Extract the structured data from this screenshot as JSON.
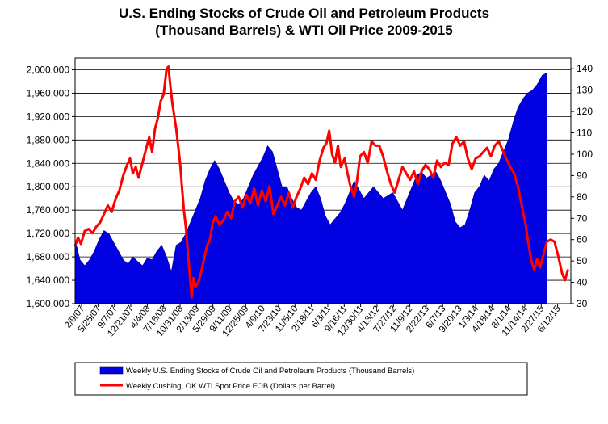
{
  "chart_data": {
    "type": "area+line",
    "title_line1": "U.S. Ending Stocks of Crude Oil and Petroleum Products",
    "title_line2": "(Thousand Barrels) & WTI Oil Price 2009-2015",
    "y_left": {
      "min": 1600000,
      "max": 2020000,
      "ticks": [
        "1,600,000",
        "1,640,000",
        "1,680,000",
        "1,720,000",
        "1,760,000",
        "1,800,000",
        "1,840,000",
        "1,880,000",
        "1,920,000",
        "1,960,000",
        "2,000,000"
      ],
      "tick_values": [
        1600000,
        1640000,
        1680000,
        1720000,
        1760000,
        1800000,
        1840000,
        1880000,
        1920000,
        1960000,
        2000000
      ]
    },
    "y_right": {
      "min": 30,
      "max": 145,
      "ticks": [
        "30",
        "40",
        "50",
        "60",
        "70",
        "80",
        "90",
        "100",
        "110",
        "120",
        "130",
        "140"
      ],
      "tick_values": [
        30,
        40,
        50,
        60,
        70,
        80,
        90,
        100,
        110,
        120,
        130,
        140
      ]
    },
    "x_tick_labels": [
      "2/9/07",
      "5/25/07",
      "9/7/07",
      "12/21/07",
      "4/4/08",
      "7/18/08",
      "10/31/08",
      "2/13/09",
      "5/29/09",
      "9/11/09",
      "12/25/09",
      "4/9/10",
      "7/23/10",
      "11/5/10",
      "2/18/11",
      "6/3/11",
      "9/16/11",
      "12/30/11",
      "4/13/12",
      "7/27/12",
      "11/9/12",
      "2/22/13",
      "6/7/13",
      "9/20/13",
      "1/3/14",
      "4/18/14",
      "8/1/14",
      "11/14/14",
      "2/27/15",
      "6/12/15"
    ],
    "grid": "horizontal",
    "legend_position": "bottom",
    "colors": {
      "stocks": "#0000e0",
      "price": "#ff0000"
    },
    "series": [
      {
        "name": "Weekly U.S. Ending Stocks of Crude Oil and Petroleum Products  (Thousand Barrels)",
        "axis": "left",
        "style": "area",
        "points": [
          [
            0,
            1710000
          ],
          [
            0.5,
            1675000
          ],
          [
            1,
            1665000
          ],
          [
            1.5,
            1675000
          ],
          [
            2,
            1690000
          ],
          [
            2.5,
            1710000
          ],
          [
            3,
            1725000
          ],
          [
            3.5,
            1720000
          ],
          [
            4,
            1705000
          ],
          [
            4.5,
            1690000
          ],
          [
            5,
            1675000
          ],
          [
            5.5,
            1668000
          ],
          [
            6,
            1680000
          ],
          [
            6.5,
            1672000
          ],
          [
            7,
            1665000
          ],
          [
            7.5,
            1678000
          ],
          [
            8,
            1675000
          ],
          [
            8.5,
            1690000
          ],
          [
            9,
            1700000
          ],
          [
            9.5,
            1680000
          ],
          [
            10,
            1655000
          ],
          [
            10.5,
            1700000
          ],
          [
            11,
            1705000
          ],
          [
            11.5,
            1720000
          ],
          [
            12,
            1740000
          ],
          [
            12.5,
            1760000
          ],
          [
            13,
            1780000
          ],
          [
            13.5,
            1810000
          ],
          [
            14,
            1830000
          ],
          [
            14.5,
            1845000
          ],
          [
            15,
            1830000
          ],
          [
            15.5,
            1810000
          ],
          [
            16,
            1790000
          ],
          [
            16.5,
            1775000
          ],
          [
            17,
            1770000
          ],
          [
            17.5,
            1780000
          ],
          [
            18,
            1800000
          ],
          [
            18.5,
            1820000
          ],
          [
            19,
            1835000
          ],
          [
            19.5,
            1850000
          ],
          [
            20,
            1870000
          ],
          [
            20.5,
            1860000
          ],
          [
            21,
            1830000
          ],
          [
            21.5,
            1800000
          ],
          [
            22,
            1800000
          ],
          [
            22.5,
            1780000
          ],
          [
            23,
            1765000
          ],
          [
            23.5,
            1760000
          ],
          [
            24,
            1775000
          ],
          [
            24.5,
            1790000
          ],
          [
            25,
            1800000
          ],
          [
            25.5,
            1780000
          ],
          [
            26,
            1750000
          ],
          [
            26.5,
            1735000
          ],
          [
            27,
            1745000
          ],
          [
            27.5,
            1755000
          ],
          [
            28,
            1770000
          ],
          [
            28.5,
            1790000
          ],
          [
            29,
            1810000
          ],
          [
            29.5,
            1795000
          ],
          [
            30,
            1780000
          ],
          [
            30.5,
            1790000
          ],
          [
            31,
            1800000
          ],
          [
            31.5,
            1790000
          ],
          [
            32,
            1780000
          ],
          [
            32.5,
            1785000
          ],
          [
            33,
            1790000
          ],
          [
            33.5,
            1775000
          ],
          [
            34,
            1760000
          ],
          [
            34.5,
            1780000
          ],
          [
            35,
            1800000
          ],
          [
            35.5,
            1820000
          ],
          [
            36,
            1825000
          ],
          [
            36.5,
            1815000
          ],
          [
            37,
            1820000
          ],
          [
            37.5,
            1825000
          ],
          [
            38,
            1810000
          ],
          [
            38.5,
            1790000
          ],
          [
            39,
            1770000
          ],
          [
            39.5,
            1740000
          ],
          [
            40,
            1730000
          ],
          [
            40.5,
            1735000
          ],
          [
            41,
            1760000
          ],
          [
            41.5,
            1790000
          ],
          [
            42,
            1800000
          ],
          [
            42.5,
            1820000
          ],
          [
            43,
            1810000
          ],
          [
            43.5,
            1830000
          ],
          [
            44,
            1840000
          ],
          [
            44.5,
            1860000
          ],
          [
            45,
            1880000
          ],
          [
            45.5,
            1910000
          ],
          [
            46,
            1935000
          ],
          [
            46.5,
            1950000
          ],
          [
            47,
            1960000
          ],
          [
            47.5,
            1965000
          ],
          [
            48,
            1975000
          ],
          [
            48.5,
            1990000
          ],
          [
            49,
            1995000
          ]
        ]
      },
      {
        "name": "Weekly Cushing, OK WTI Spot Price FOB  (Dollars per Barrel)",
        "axis": "right",
        "style": "line",
        "points": [
          [
            0,
            57
          ],
          [
            0.3,
            61
          ],
          [
            0.6,
            58
          ],
          [
            1,
            64
          ],
          [
            1.4,
            65
          ],
          [
            1.8,
            63
          ],
          [
            2.2,
            66
          ],
          [
            2.6,
            68
          ],
          [
            3,
            72
          ],
          [
            3.4,
            76
          ],
          [
            3.8,
            73
          ],
          [
            4.2,
            79
          ],
          [
            4.6,
            83
          ],
          [
            5,
            90
          ],
          [
            5.4,
            95
          ],
          [
            5.7,
            98
          ],
          [
            6,
            91
          ],
          [
            6.3,
            94
          ],
          [
            6.6,
            89
          ],
          [
            7,
            96
          ],
          [
            7.4,
            103
          ],
          [
            7.7,
            108
          ],
          [
            8,
            101
          ],
          [
            8.3,
            112
          ],
          [
            8.6,
            117
          ],
          [
            8.9,
            125
          ],
          [
            9.2,
            128
          ],
          [
            9.5,
            140
          ],
          [
            9.7,
            141
          ],
          [
            9.9,
            132
          ],
          [
            10.1,
            124
          ],
          [
            10.3,
            118
          ],
          [
            10.5,
            112
          ],
          [
            10.7,
            104
          ],
          [
            10.9,
            96
          ],
          [
            11.1,
            85
          ],
          [
            11.3,
            74
          ],
          [
            11.5,
            66
          ],
          [
            11.7,
            55
          ],
          [
            11.9,
            44
          ],
          [
            12.1,
            33
          ],
          [
            12.3,
            42
          ],
          [
            12.5,
            38
          ],
          [
            12.8,
            40
          ],
          [
            13.1,
            45
          ],
          [
            13.4,
            51
          ],
          [
            13.7,
            57
          ],
          [
            14,
            60
          ],
          [
            14.3,
            68
          ],
          [
            14.6,
            71
          ],
          [
            15,
            67
          ],
          [
            15.4,
            69
          ],
          [
            15.8,
            73
          ],
          [
            16.2,
            70
          ],
          [
            16.6,
            78
          ],
          [
            17,
            80
          ],
          [
            17.4,
            75
          ],
          [
            17.8,
            81
          ],
          [
            18.2,
            77
          ],
          [
            18.6,
            84
          ],
          [
            19,
            76
          ],
          [
            19.4,
            83
          ],
          [
            19.8,
            78
          ],
          [
            20.2,
            85
          ],
          [
            20.6,
            72
          ],
          [
            21,
            76
          ],
          [
            21.4,
            80
          ],
          [
            21.8,
            76
          ],
          [
            22.2,
            82
          ],
          [
            22.6,
            75
          ],
          [
            23,
            80
          ],
          [
            23.4,
            84
          ],
          [
            23.8,
            89
          ],
          [
            24.2,
            86
          ],
          [
            24.6,
            91
          ],
          [
            25,
            88
          ],
          [
            25.4,
            97
          ],
          [
            25.8,
            103
          ],
          [
            26.1,
            105
          ],
          [
            26.4,
            111
          ],
          [
            26.7,
            100
          ],
          [
            27,
            96
          ],
          [
            27.3,
            104
          ],
          [
            27.6,
            94
          ],
          [
            28,
            98
          ],
          [
            28.3,
            91
          ],
          [
            28.6,
            85
          ],
          [
            29,
            80
          ],
          [
            29.3,
            88
          ],
          [
            29.6,
            99
          ],
          [
            30,
            101
          ],
          [
            30.4,
            96
          ],
          [
            30.8,
            106
          ],
          [
            31.2,
            104
          ],
          [
            31.6,
            104
          ],
          [
            32,
            99
          ],
          [
            32.4,
            92
          ],
          [
            32.8,
            86
          ],
          [
            33.2,
            82
          ],
          [
            33.6,
            88
          ],
          [
            34,
            94
          ],
          [
            34.4,
            91
          ],
          [
            34.8,
            88
          ],
          [
            35.2,
            92
          ],
          [
            35.6,
            86
          ],
          [
            36,
            92
          ],
          [
            36.4,
            95
          ],
          [
            36.8,
            93
          ],
          [
            37.2,
            89
          ],
          [
            37.6,
            97
          ],
          [
            38,
            94
          ],
          [
            38.4,
            96
          ],
          [
            38.8,
            95
          ],
          [
            39.2,
            105
          ],
          [
            39.6,
            108
          ],
          [
            40,
            104
          ],
          [
            40.4,
            106
          ],
          [
            40.8,
            98
          ],
          [
            41.2,
            93
          ],
          [
            41.6,
            98
          ],
          [
            42,
            99
          ],
          [
            42.4,
            101
          ],
          [
            42.8,
            103
          ],
          [
            43.2,
            99
          ],
          [
            43.6,
            104
          ],
          [
            44,
            106
          ],
          [
            44.4,
            102
          ],
          [
            44.8,
            98
          ],
          [
            45.2,
            94
          ],
          [
            45.6,
            91
          ],
          [
            46,
            85
          ],
          [
            46.4,
            76
          ],
          [
            46.8,
            67
          ],
          [
            47.1,
            58
          ],
          [
            47.4,
            50
          ],
          [
            47.7,
            46
          ],
          [
            48,
            51
          ],
          [
            48.3,
            47
          ],
          [
            48.6,
            52
          ],
          [
            49,
            59
          ],
          [
            49.4,
            60
          ],
          [
            49.8,
            59
          ],
          [
            50.2,
            52
          ],
          [
            50.6,
            44
          ],
          [
            50.9,
            41
          ],
          [
            51.2,
            46
          ]
        ]
      }
    ],
    "x_domain": [
      0,
      51.5
    ]
  }
}
